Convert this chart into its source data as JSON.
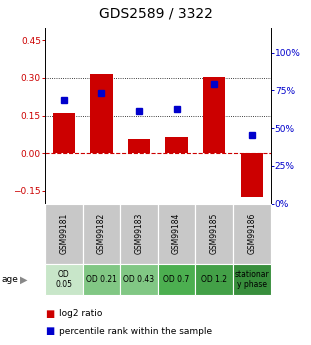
{
  "title": "GDS2589 / 3322",
  "samples": [
    "GSM99181",
    "GSM99182",
    "GSM99183",
    "GSM99184",
    "GSM99185",
    "GSM99186"
  ],
  "log2_ratio": [
    0.16,
    0.315,
    0.055,
    0.065,
    0.305,
    -0.175
  ],
  "percentile_rank": [
    0.685,
    0.735,
    0.615,
    0.63,
    0.795,
    0.455
  ],
  "age_labels": [
    "OD\n0.05",
    "OD 0.21",
    "OD 0.43",
    "OD 0.7",
    "OD 1.2",
    "stationar\ny phase"
  ],
  "age_colors": [
    "#c8e6c9",
    "#81c784",
    "#81c784",
    "#4caf50",
    "#43a047",
    "#388e3c"
  ],
  "bar_color": "#cc0000",
  "dot_color": "#0000cc",
  "ylim_left": [
    -0.2,
    0.5
  ],
  "ylim_right": [
    0.0,
    1.1667
  ],
  "left_yticks": [
    -0.15,
    0.0,
    0.15,
    0.3,
    0.45
  ],
  "right_yticks": [
    0.0,
    0.25,
    0.5,
    0.75,
    1.0
  ],
  "right_yticklabels": [
    "0%",
    "25%",
    "50%",
    "75%",
    "100%"
  ],
  "dotted_lines": [
    0.15,
    0.3
  ],
  "zero_line_color": "#cc0000",
  "sample_box_color": "#c8c8c8",
  "title_fontsize": 10,
  "tick_fontsize": 6.5,
  "legend_fontsize": 6.5,
  "age_fontsize": 5.5,
  "sample_fontsize": 5.5
}
